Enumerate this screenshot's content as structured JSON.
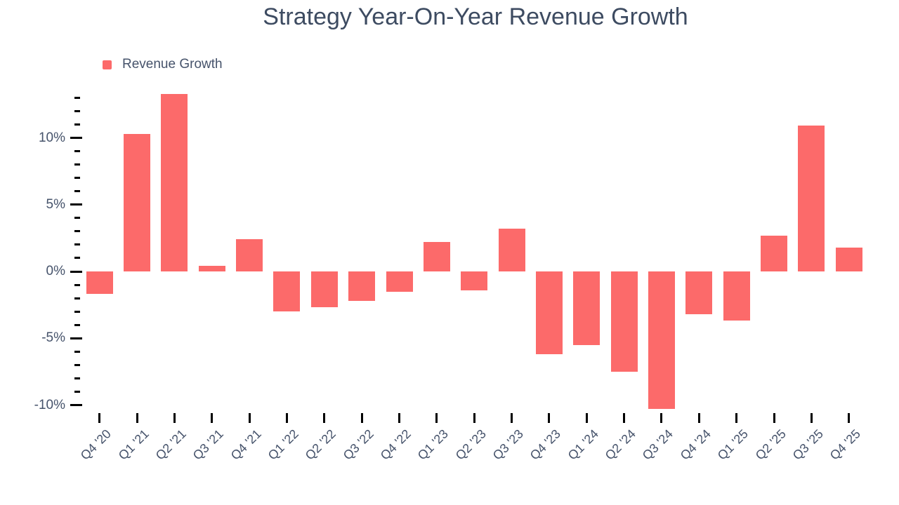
{
  "title": "Strategy Year-On-Year Revenue Growth",
  "legend": {
    "label": "Revenue Growth"
  },
  "colors": {
    "bar": "#fc6a6a",
    "title_text": "#3d4b61",
    "axis_text": "#46536b",
    "tick": "#000000",
    "background": "#ffffff"
  },
  "y_axis": {
    "unit": "%",
    "minor_tick_step": 1,
    "top_tick_value": 13,
    "bottom_tick_value": -10,
    "major_ticks": [
      {
        "value": 10,
        "label": "10%"
      },
      {
        "value": 5,
        "label": "5%"
      },
      {
        "value": 0,
        "label": "0%"
      },
      {
        "value": -5,
        "label": "-5%"
      },
      {
        "value": -10,
        "label": "-10%"
      }
    ]
  },
  "chart_data": {
    "type": "bar",
    "title": "Strategy Year-On-Year Revenue Growth",
    "xlabel": "",
    "ylabel": "",
    "unit": "%",
    "ylim": [
      -10.5,
      13.5
    ],
    "grid": false,
    "legend_position": "top-left",
    "categories": [
      "Q4 '20",
      "Q1 '21",
      "Q2 '21",
      "Q3 '21",
      "Q4 '21",
      "Q1 '22",
      "Q2 '22",
      "Q3 '22",
      "Q4 '22",
      "Q1 '23",
      "Q2 '23",
      "Q3 '23",
      "Q4 '23",
      "Q1 '24",
      "Q2 '24",
      "Q3 '24",
      "Q4 '24",
      "Q1 '25",
      "Q2 '25",
      "Q3 '25",
      "Q4 '25"
    ],
    "series": [
      {
        "name": "Revenue Growth",
        "color": "#fc6a6a",
        "values": [
          -1.7,
          10.3,
          13.3,
          0.4,
          2.4,
          -3.0,
          -2.7,
          -2.2,
          -1.5,
          2.2,
          -1.4,
          3.2,
          -6.2,
          -5.5,
          -7.5,
          -10.3,
          -3.2,
          -3.7,
          2.7,
          10.9,
          1.8
        ]
      }
    ]
  }
}
